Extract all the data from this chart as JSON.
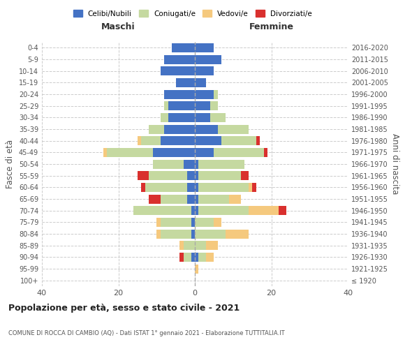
{
  "age_groups": [
    "100+",
    "95-99",
    "90-94",
    "85-89",
    "80-84",
    "75-79",
    "70-74",
    "65-69",
    "60-64",
    "55-59",
    "50-54",
    "45-49",
    "40-44",
    "35-39",
    "30-34",
    "25-29",
    "20-24",
    "15-19",
    "10-14",
    "5-9",
    "0-4"
  ],
  "birth_years": [
    "≤ 1920",
    "1921-1925",
    "1926-1930",
    "1931-1935",
    "1936-1940",
    "1941-1945",
    "1946-1950",
    "1951-1955",
    "1956-1960",
    "1961-1965",
    "1966-1970",
    "1971-1975",
    "1976-1980",
    "1981-1985",
    "1986-1990",
    "1991-1995",
    "1996-2000",
    "2001-2005",
    "2006-2010",
    "2011-2015",
    "2016-2020"
  ],
  "male": {
    "celibi": [
      0,
      0,
      1,
      0,
      1,
      1,
      1,
      2,
      2,
      2,
      3,
      11,
      9,
      8,
      7,
      7,
      8,
      5,
      9,
      8,
      6
    ],
    "coniugati": [
      0,
      0,
      2,
      3,
      8,
      8,
      15,
      7,
      11,
      10,
      8,
      12,
      5,
      4,
      2,
      1,
      0,
      0,
      0,
      0,
      0
    ],
    "vedovi": [
      0,
      0,
      0,
      1,
      1,
      1,
      0,
      0,
      0,
      0,
      0,
      1,
      1,
      0,
      0,
      0,
      0,
      0,
      0,
      0,
      0
    ],
    "divorziati": [
      0,
      0,
      1,
      0,
      0,
      0,
      0,
      3,
      1,
      3,
      0,
      0,
      0,
      0,
      0,
      0,
      0,
      0,
      0,
      0,
      0
    ]
  },
  "female": {
    "nubili": [
      0,
      0,
      1,
      0,
      0,
      0,
      1,
      1,
      1,
      1,
      1,
      5,
      7,
      6,
      4,
      4,
      5,
      3,
      5,
      7,
      5
    ],
    "coniugate": [
      0,
      0,
      2,
      3,
      8,
      5,
      13,
      8,
      13,
      11,
      12,
      13,
      9,
      8,
      4,
      2,
      1,
      0,
      0,
      0,
      0
    ],
    "vedove": [
      0,
      1,
      2,
      3,
      6,
      2,
      8,
      3,
      1,
      0,
      0,
      0,
      0,
      0,
      0,
      0,
      0,
      0,
      0,
      0,
      0
    ],
    "divorziate": [
      0,
      0,
      0,
      0,
      0,
      0,
      2,
      0,
      1,
      2,
      0,
      1,
      1,
      0,
      0,
      0,
      0,
      0,
      0,
      0,
      0
    ]
  },
  "colors": {
    "celibi": "#4472c4",
    "coniugati": "#c5d9a0",
    "vedovi": "#f5c97e",
    "divorziati": "#d9302e"
  },
  "xlim": 40,
  "title": "Popolazione per età, sesso e stato civile - 2021",
  "subtitle": "COMUNE DI ROCCA DI CAMBIO (AQ) - Dati ISTAT 1° gennaio 2021 - Elaborazione TUTTITALIA.IT",
  "ylabel_left": "Fasce di età",
  "ylabel_right": "Anni di nascita",
  "header_maschi": "Maschi",
  "header_femmine": "Femmine",
  "legend_labels": [
    "Celibi/Nubili",
    "Coniugati/e",
    "Vedovi/e",
    "Divorziati/e"
  ],
  "bg_color": "#ffffff",
  "grid_color": "#cccccc"
}
